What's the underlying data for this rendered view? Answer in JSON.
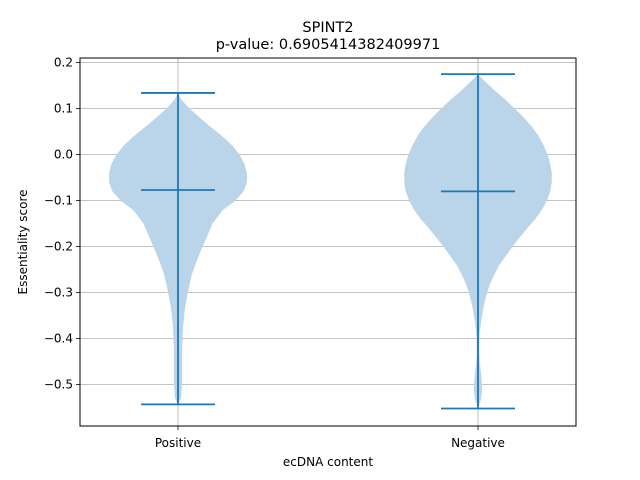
{
  "chart_data": {
    "type": "violin",
    "title": "SPINT2",
    "subtitle": "p-value: 0.6905414382409971",
    "xlabel": "ecDNA content",
    "ylabel": "Essentiality score",
    "categories": [
      "Positive",
      "Negative"
    ],
    "ylim": [
      -0.59,
      0.21
    ],
    "yticks": [
      0.2,
      0.1,
      0.0,
      -0.1,
      -0.2,
      -0.3,
      -0.4,
      -0.5
    ],
    "ytick_labels": [
      "0.2",
      "0.1",
      "0.0",
      "−0.1",
      "−0.2",
      "−0.3",
      "−0.4",
      "−0.5"
    ],
    "grid": true,
    "colors": {
      "body": "#bad4e9",
      "lines": "#1f77b4",
      "grid": "#b0b0b0"
    },
    "series": [
      {
        "category": "Positive",
        "max": 0.134,
        "median": -0.077,
        "min": -0.543,
        "density": [
          [
            0.134,
            0.0
          ],
          [
            0.12,
            0.04
          ],
          [
            0.1,
            0.14
          ],
          [
            0.07,
            0.33
          ],
          [
            0.04,
            0.54
          ],
          [
            0.02,
            0.66
          ],
          [
            0.0,
            0.75
          ],
          [
            -0.02,
            0.81
          ],
          [
            -0.04,
            0.84
          ],
          [
            -0.06,
            0.84
          ],
          [
            -0.08,
            0.8
          ],
          [
            -0.1,
            0.7
          ],
          [
            -0.12,
            0.55
          ],
          [
            -0.15,
            0.42
          ],
          [
            -0.18,
            0.35
          ],
          [
            -0.2,
            0.3
          ],
          [
            -0.23,
            0.23
          ],
          [
            -0.26,
            0.17
          ],
          [
            -0.3,
            0.12
          ],
          [
            -0.34,
            0.08
          ],
          [
            -0.38,
            0.06
          ],
          [
            -0.42,
            0.05
          ],
          [
            -0.46,
            0.05
          ],
          [
            -0.5,
            0.05
          ],
          [
            -0.53,
            0.035
          ],
          [
            -0.543,
            0.0
          ]
        ]
      },
      {
        "category": "Negative",
        "max": 0.175,
        "median": -0.08,
        "min": -0.552,
        "density": [
          [
            0.175,
            0.0
          ],
          [
            0.16,
            0.08
          ],
          [
            0.14,
            0.2
          ],
          [
            0.12,
            0.33
          ],
          [
            0.1,
            0.45
          ],
          [
            0.08,
            0.56
          ],
          [
            0.06,
            0.66
          ],
          [
            0.04,
            0.74
          ],
          [
            0.02,
            0.8
          ],
          [
            0.0,
            0.85
          ],
          [
            -0.02,
            0.88
          ],
          [
            -0.04,
            0.9
          ],
          [
            -0.06,
            0.9
          ],
          [
            -0.08,
            0.88
          ],
          [
            -0.1,
            0.84
          ],
          [
            -0.12,
            0.78
          ],
          [
            -0.14,
            0.7
          ],
          [
            -0.16,
            0.6
          ],
          [
            -0.18,
            0.51
          ],
          [
            -0.2,
            0.42
          ],
          [
            -0.22,
            0.34
          ],
          [
            -0.24,
            0.26
          ],
          [
            -0.26,
            0.2
          ],
          [
            -0.28,
            0.15
          ],
          [
            -0.3,
            0.11
          ],
          [
            -0.33,
            0.07
          ],
          [
            -0.36,
            0.04
          ],
          [
            -0.39,
            0.02
          ],
          [
            -0.42,
            0.015
          ],
          [
            -0.45,
            0.02
          ],
          [
            -0.48,
            0.04
          ],
          [
            -0.51,
            0.05
          ],
          [
            -0.53,
            0.04
          ],
          [
            -0.552,
            0.0
          ]
        ]
      }
    ]
  }
}
